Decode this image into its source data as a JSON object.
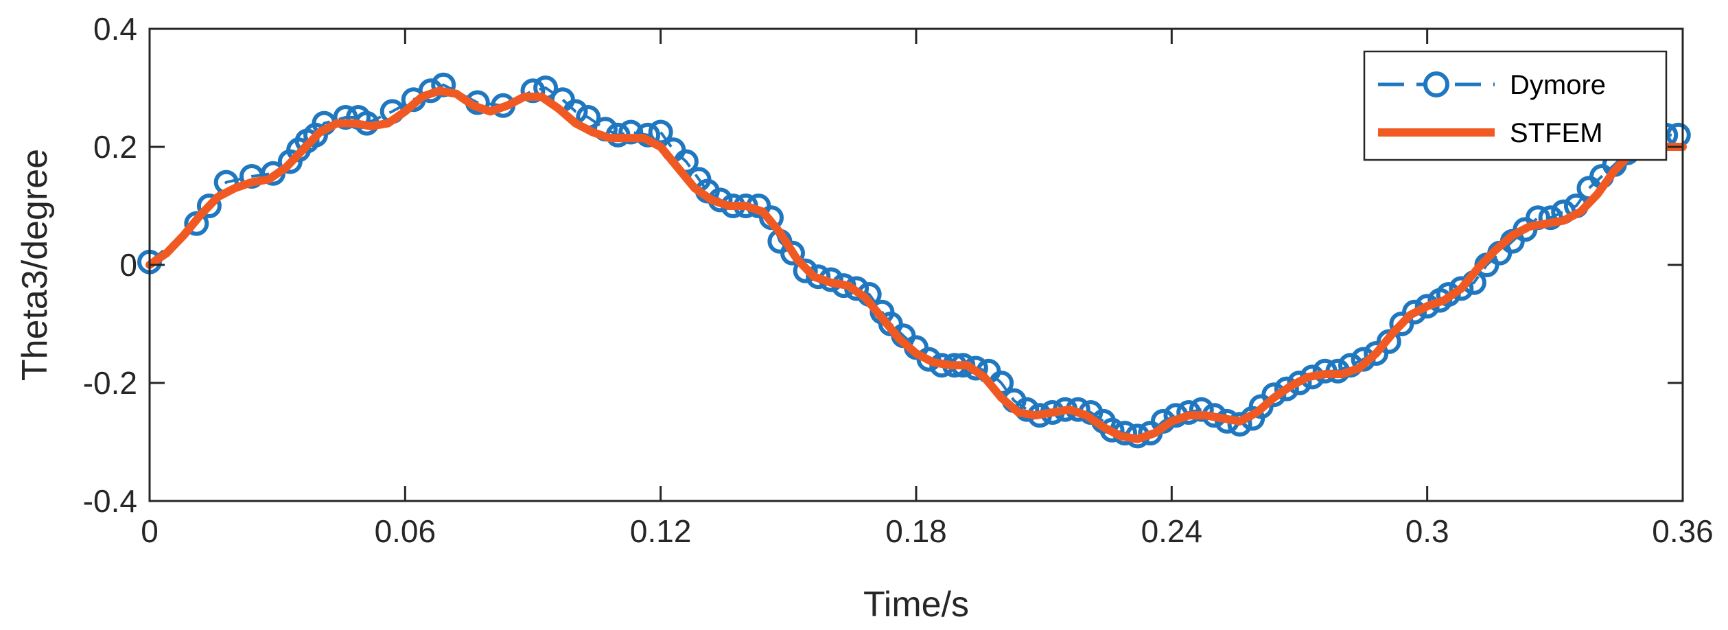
{
  "chart_data": {
    "type": "line",
    "xlabel": "Time/s",
    "ylabel": "Theta3/degree",
    "xlim": [
      0,
      0.36
    ],
    "ylim": [
      -0.4,
      0.4
    ],
    "xticks": [
      0,
      0.06,
      0.12,
      0.18,
      0.24,
      0.3,
      0.36
    ],
    "xtick_labels": [
      "0",
      "0.06",
      "0.12",
      "0.18",
      "0.24",
      "0.3",
      "0.36"
    ],
    "yticks": [
      -0.4,
      -0.2,
      0,
      0.2,
      0.4
    ],
    "ytick_labels": [
      "-0.4",
      "-0.2",
      "0",
      "0.2",
      "0.4"
    ],
    "grid": false,
    "legend_position": "top-right",
    "series": [
      {
        "name": "Dymore",
        "style": "dashed line with circle markers",
        "color": "#1f77c0",
        "x": [
          0,
          0.011,
          0.014,
          0.018,
          0.024,
          0.029,
          0.033,
          0.035,
          0.037,
          0.039,
          0.041,
          0.046,
          0.049,
          0.051,
          0.057,
          0.062,
          0.066,
          0.069,
          0.077,
          0.083,
          0.09,
          0.093,
          0.097,
          0.1,
          0.103,
          0.107,
          0.11,
          0.113,
          0.117,
          0.12,
          0.123,
          0.126,
          0.129,
          0.131,
          0.134,
          0.137,
          0.14,
          0.143,
          0.146,
          0.148,
          0.151,
          0.154,
          0.157,
          0.16,
          0.163,
          0.166,
          0.169,
          0.172,
          0.174,
          0.177,
          0.18,
          0.183,
          0.186,
          0.189,
          0.191,
          0.194,
          0.197,
          0.2,
          0.203,
          0.206,
          0.209,
          0.212,
          0.215,
          0.218,
          0.221,
          0.224,
          0.226,
          0.229,
          0.232,
          0.235,
          0.238,
          0.241,
          0.244,
          0.247,
          0.25,
          0.253,
          0.256,
          0.259,
          0.261,
          0.264,
          0.267,
          0.27,
          0.273,
          0.276,
          0.279,
          0.282,
          0.285,
          0.288,
          0.291,
          0.294,
          0.297,
          0.3,
          0.303,
          0.305,
          0.308,
          0.311,
          0.314,
          0.317,
          0.32,
          0.323,
          0.326,
          0.329,
          0.332,
          0.335,
          0.338,
          0.341,
          0.344,
          0.347,
          0.35,
          0.353,
          0.356,
          0.359
        ],
        "y": [
          0.005,
          0.07,
          0.1,
          0.14,
          0.15,
          0.155,
          0.175,
          0.195,
          0.21,
          0.22,
          0.24,
          0.25,
          0.25,
          0.24,
          0.26,
          0.28,
          0.295,
          0.305,
          0.275,
          0.27,
          0.295,
          0.3,
          0.28,
          0.26,
          0.25,
          0.23,
          0.22,
          0.225,
          0.22,
          0.225,
          0.195,
          0.175,
          0.145,
          0.125,
          0.11,
          0.1,
          0.1,
          0.1,
          0.08,
          0.04,
          0.02,
          -0.01,
          -0.02,
          -0.025,
          -0.035,
          -0.04,
          -0.05,
          -0.08,
          -0.1,
          -0.12,
          -0.14,
          -0.16,
          -0.17,
          -0.17,
          -0.17,
          -0.175,
          -0.18,
          -0.2,
          -0.23,
          -0.245,
          -0.255,
          -0.25,
          -0.245,
          -0.245,
          -0.25,
          -0.265,
          -0.28,
          -0.285,
          -0.29,
          -0.285,
          -0.265,
          -0.255,
          -0.25,
          -0.245,
          -0.255,
          -0.265,
          -0.27,
          -0.26,
          -0.24,
          -0.22,
          -0.21,
          -0.2,
          -0.19,
          -0.18,
          -0.18,
          -0.17,
          -0.16,
          -0.15,
          -0.13,
          -0.1,
          -0.08,
          -0.07,
          -0.06,
          -0.05,
          -0.04,
          -0.03,
          0,
          0.02,
          0.04,
          0.06,
          0.08,
          0.08,
          0.09,
          0.1,
          0.13,
          0.15,
          0.17,
          0.19,
          0.2,
          0.21,
          0.22,
          0.22
        ]
      },
      {
        "name": "STFEM",
        "style": "solid thick line",
        "color": "#f05a22",
        "x": [
          0,
          0.004,
          0.008,
          0.012,
          0.016,
          0.02,
          0.024,
          0.028,
          0.032,
          0.036,
          0.04,
          0.044,
          0.048,
          0.052,
          0.056,
          0.06,
          0.064,
          0.068,
          0.072,
          0.076,
          0.08,
          0.084,
          0.088,
          0.092,
          0.096,
          0.1,
          0.104,
          0.108,
          0.112,
          0.116,
          0.12,
          0.124,
          0.128,
          0.132,
          0.136,
          0.14,
          0.144,
          0.148,
          0.152,
          0.156,
          0.16,
          0.164,
          0.168,
          0.172,
          0.176,
          0.18,
          0.184,
          0.188,
          0.192,
          0.196,
          0.2,
          0.204,
          0.208,
          0.212,
          0.216,
          0.22,
          0.224,
          0.228,
          0.232,
          0.236,
          0.24,
          0.244,
          0.248,
          0.252,
          0.256,
          0.26,
          0.264,
          0.268,
          0.272,
          0.276,
          0.28,
          0.284,
          0.288,
          0.292,
          0.296,
          0.3,
          0.304,
          0.308,
          0.312,
          0.316,
          0.32,
          0.324,
          0.328,
          0.332,
          0.336,
          0.34,
          0.344,
          0.348,
          0.352,
          0.356,
          0.36
        ],
        "y": [
          0.0,
          0.02,
          0.05,
          0.085,
          0.115,
          0.13,
          0.14,
          0.145,
          0.165,
          0.195,
          0.225,
          0.24,
          0.24,
          0.235,
          0.24,
          0.26,
          0.285,
          0.295,
          0.29,
          0.27,
          0.26,
          0.27,
          0.285,
          0.285,
          0.265,
          0.24,
          0.225,
          0.215,
          0.215,
          0.215,
          0.2,
          0.165,
          0.13,
          0.11,
          0.1,
          0.1,
          0.09,
          0.055,
          0.01,
          -0.02,
          -0.03,
          -0.035,
          -0.055,
          -0.09,
          -0.125,
          -0.15,
          -0.165,
          -0.17,
          -0.17,
          -0.19,
          -0.225,
          -0.25,
          -0.255,
          -0.25,
          -0.245,
          -0.255,
          -0.275,
          -0.29,
          -0.295,
          -0.285,
          -0.265,
          -0.255,
          -0.255,
          -0.26,
          -0.265,
          -0.25,
          -0.225,
          -0.205,
          -0.19,
          -0.185,
          -0.185,
          -0.175,
          -0.15,
          -0.115,
          -0.085,
          -0.07,
          -0.06,
          -0.04,
          -0.005,
          0.025,
          0.05,
          0.065,
          0.07,
          0.075,
          0.09,
          0.12,
          0.16,
          0.19,
          0.2,
          0.2,
          0.2
        ]
      }
    ]
  }
}
